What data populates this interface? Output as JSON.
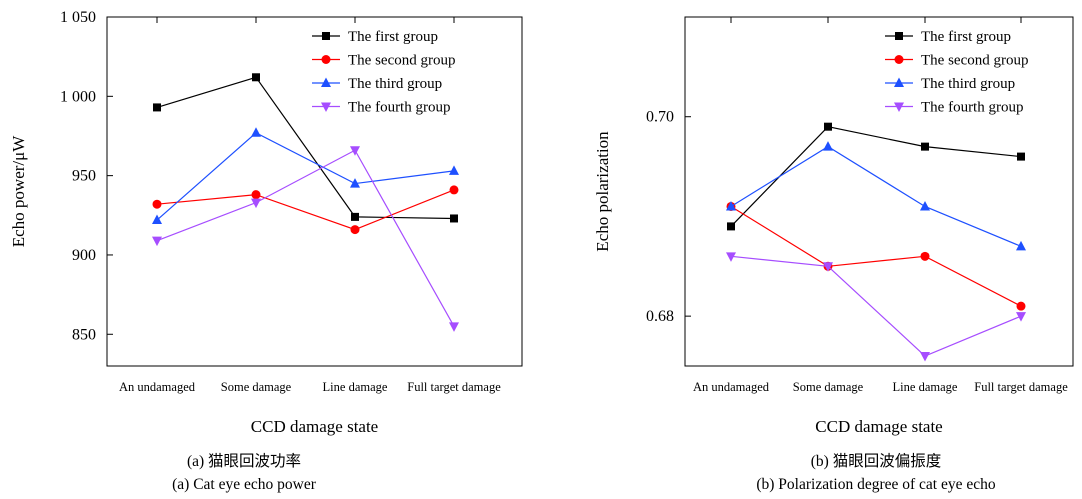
{
  "chart_data": [
    {
      "type": "line",
      "categories": [
        "An undamaged",
        "Some damage",
        "Line damage",
        "Full target damage"
      ],
      "xlabel": "CCD damage state",
      "ylabel": "Echo power/μW",
      "ylim": [
        830,
        1050
      ],
      "yticks": [
        850,
        900,
        950,
        1000,
        1050
      ],
      "ytick_labels": [
        "850",
        "900",
        "950",
        "1 000",
        "1 050"
      ],
      "grid": false,
      "legend_position": "top-right",
      "caption_cn": "(a) 猫眼回波功率",
      "caption_en": "(a) Cat eye echo power",
      "series": [
        {
          "name": "The first group",
          "color": "#000000",
          "marker": "square",
          "values": [
            993,
            1012,
            924,
            923
          ]
        },
        {
          "name": "The second group",
          "color": "#ff0000",
          "marker": "circle",
          "values": [
            932,
            938,
            916,
            941
          ]
        },
        {
          "name": "The third group",
          "color": "#1e50ff",
          "marker": "triangle-up",
          "values": [
            922,
            977,
            945,
            953
          ]
        },
        {
          "name": "The fourth group",
          "color": "#a64dff",
          "marker": "triangle-down",
          "values": [
            909,
            933,
            966,
            855
          ]
        }
      ]
    },
    {
      "type": "line",
      "categories": [
        "An undamaged",
        "Some damage",
        "Line damage",
        "Full target damage"
      ],
      "xlabel": "CCD damage state",
      "ylabel": "Echo polarization",
      "ylim": [
        0.675,
        0.71
      ],
      "yticks": [
        0.68,
        0.7
      ],
      "ytick_labels": [
        "0.68",
        "0.70"
      ],
      "grid": false,
      "legend_position": "top-right",
      "caption_cn": "(b) 猫眼回波偏振度",
      "caption_en": "(b) Polarization degree of cat eye echo",
      "series": [
        {
          "name": "The first group",
          "color": "#000000",
          "marker": "square",
          "values": [
            0.689,
            0.699,
            0.697,
            0.696
          ]
        },
        {
          "name": "The second group",
          "color": "#ff0000",
          "marker": "circle",
          "values": [
            0.691,
            0.685,
            0.686,
            0.681
          ]
        },
        {
          "name": "The third group",
          "color": "#1e50ff",
          "marker": "triangle-up",
          "values": [
            0.691,
            0.697,
            0.691,
            0.687
          ]
        },
        {
          "name": "The fourth group",
          "color": "#a64dff",
          "marker": "triangle-down",
          "values": [
            0.686,
            0.685,
            0.676,
            0.68
          ]
        }
      ]
    }
  ]
}
